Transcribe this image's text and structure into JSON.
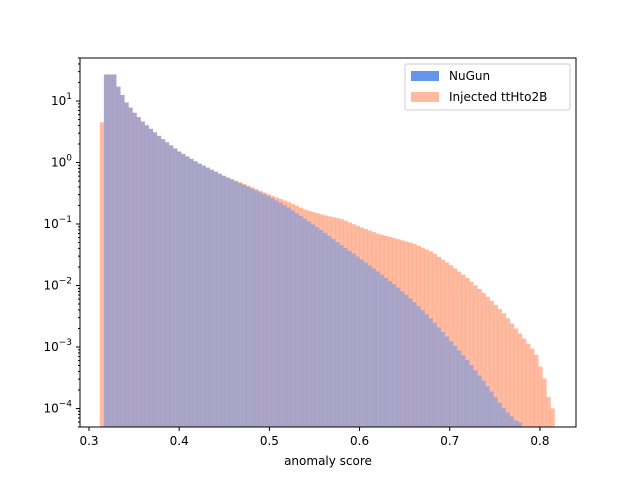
{
  "chart_data": {
    "type": "bar",
    "histogram": true,
    "xlabel": "anomaly score",
    "ylabel": "",
    "yscale": "log",
    "xlim": [
      0.29,
      0.84
    ],
    "ylim": [
      5e-05,
      50
    ],
    "xticks": [
      0.3,
      0.4,
      0.5,
      0.6,
      0.7,
      0.8
    ],
    "xtick_labels": [
      "0.3",
      "0.4",
      "0.5",
      "0.6",
      "0.7",
      "0.8"
    ],
    "yticks": [
      0.0001,
      0.001,
      0.01,
      0.1,
      1,
      10
    ],
    "ytick_labels": [
      {
        "base": "10",
        "exp": "−4"
      },
      {
        "base": "10",
        "exp": "−3"
      },
      {
        "base": "10",
        "exp": "−2"
      },
      {
        "base": "10",
        "exp": "−1"
      },
      {
        "base": "10",
        "exp": "0"
      },
      {
        "base": "10",
        "exp": "1"
      }
    ],
    "legend_position": "top-right",
    "series": [
      {
        "name": "NuGun",
        "color": "#6495ed",
        "bins": [
          {
            "x": 0.312,
            "y": 0.0
          },
          {
            "x": 0.325,
            "y": 27
          },
          {
            "x": 0.33,
            "y": 20
          },
          {
            "x": 0.34,
            "y": 10
          },
          {
            "x": 0.35,
            "y": 6.5
          },
          {
            "x": 0.36,
            "y": 4.5
          },
          {
            "x": 0.38,
            "y": 2.5
          },
          {
            "x": 0.4,
            "y": 1.5
          },
          {
            "x": 0.42,
            "y": 1.0
          },
          {
            "x": 0.45,
            "y": 0.6
          },
          {
            "x": 0.48,
            "y": 0.38
          },
          {
            "x": 0.5,
            "y": 0.28
          },
          {
            "x": 0.52,
            "y": 0.19
          },
          {
            "x": 0.54,
            "y": 0.12
          },
          {
            "x": 0.56,
            "y": 0.075
          },
          {
            "x": 0.58,
            "y": 0.045
          },
          {
            "x": 0.6,
            "y": 0.028
          },
          {
            "x": 0.62,
            "y": 0.017
          },
          {
            "x": 0.64,
            "y": 0.01
          },
          {
            "x": 0.66,
            "y": 0.0055
          },
          {
            "x": 0.68,
            "y": 0.0028
          },
          {
            "x": 0.7,
            "y": 0.0013
          },
          {
            "x": 0.72,
            "y": 0.0006
          },
          {
            "x": 0.74,
            "y": 0.00025
          },
          {
            "x": 0.76,
            "y": 0.0001
          },
          {
            "x": 0.775,
            "y": 6e-05
          }
        ]
      },
      {
        "name": "Injected ttHto2B",
        "color": "#ffa07a",
        "bins": [
          {
            "x": 0.312,
            "y": 4.5
          },
          {
            "x": 0.325,
            "y": 27
          },
          {
            "x": 0.33,
            "y": 20
          },
          {
            "x": 0.34,
            "y": 10
          },
          {
            "x": 0.35,
            "y": 6.5
          },
          {
            "x": 0.36,
            "y": 4.5
          },
          {
            "x": 0.38,
            "y": 2.5
          },
          {
            "x": 0.4,
            "y": 1.5
          },
          {
            "x": 0.42,
            "y": 1.0
          },
          {
            "x": 0.45,
            "y": 0.6
          },
          {
            "x": 0.48,
            "y": 0.4
          },
          {
            "x": 0.5,
            "y": 0.3
          },
          {
            "x": 0.52,
            "y": 0.23
          },
          {
            "x": 0.54,
            "y": 0.17
          },
          {
            "x": 0.56,
            "y": 0.14
          },
          {
            "x": 0.58,
            "y": 0.12
          },
          {
            "x": 0.6,
            "y": 0.09
          },
          {
            "x": 0.62,
            "y": 0.07
          },
          {
            "x": 0.64,
            "y": 0.058
          },
          {
            "x": 0.66,
            "y": 0.048
          },
          {
            "x": 0.68,
            "y": 0.035
          },
          {
            "x": 0.7,
            "y": 0.022
          },
          {
            "x": 0.72,
            "y": 0.013
          },
          {
            "x": 0.74,
            "y": 0.007
          },
          {
            "x": 0.76,
            "y": 0.0035
          },
          {
            "x": 0.78,
            "y": 0.0015
          },
          {
            "x": 0.795,
            "y": 0.0008
          },
          {
            "x": 0.805,
            "y": 0.0003
          },
          {
            "x": 0.812,
            "y": 0.0001
          }
        ]
      }
    ],
    "overlap_color": "#9f7e95"
  }
}
